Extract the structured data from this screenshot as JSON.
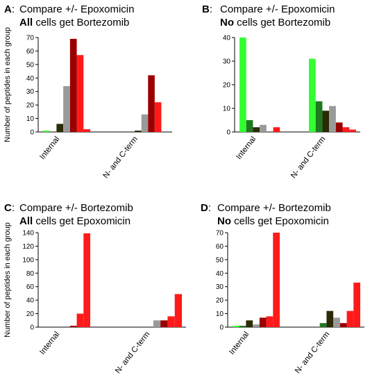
{
  "colors": {
    "bright_green": "#33ff33",
    "dark_green": "#1f7a1f",
    "dark_olive": "#2b2b05",
    "gray": "#9a9a9a",
    "dark_red": "#9a0000",
    "red": "#ff1a1a"
  },
  "chart_data": [
    {
      "type": "bar",
      "panel": "A",
      "letter": "A",
      "colon": ":",
      "title": "Compare +/- Epoxomicin",
      "subtitle_bold": "All",
      "subtitle_rest": " cells get Bortezomib",
      "ylabel": "Number of peptides in each group",
      "ylim": [
        0,
        70
      ],
      "yticks": [
        0,
        10,
        20,
        30,
        40,
        50,
        60,
        70
      ],
      "categories": [
        "Internal",
        "N- and C-term"
      ],
      "series": [
        {
          "color_key": "bright_green",
          "values": [
            1,
            0
          ]
        },
        {
          "color_key": "dark_green",
          "values": [
            0,
            0
          ]
        },
        {
          "color_key": "dark_olive",
          "values": [
            6,
            1
          ]
        },
        {
          "color_key": "gray",
          "values": [
            34,
            13
          ]
        },
        {
          "color_key": "dark_red",
          "values": [
            69,
            42
          ]
        },
        {
          "color_key": "red",
          "values": [
            57,
            22
          ]
        },
        {
          "color_key": "red",
          "values": [
            2,
            0
          ]
        }
      ]
    },
    {
      "type": "bar",
      "panel": "B",
      "letter": "B",
      "colon": ":",
      "title": "Compare +/- Epoxomicin",
      "subtitle_bold": "No",
      "subtitle_rest": " cells get Bortezomib",
      "ylabel": "",
      "ylim": [
        0,
        40
      ],
      "yticks": [
        0,
        10,
        20,
        30,
        40
      ],
      "categories": [
        "Internal",
        "N- and C-term"
      ],
      "series": [
        {
          "color_key": "bright_green",
          "values": [
            40,
            31
          ]
        },
        {
          "color_key": "dark_green",
          "values": [
            5,
            13
          ]
        },
        {
          "color_key": "dark_olive",
          "values": [
            2,
            9
          ]
        },
        {
          "color_key": "gray",
          "values": [
            3,
            11
          ]
        },
        {
          "color_key": "dark_red",
          "values": [
            0,
            4
          ]
        },
        {
          "color_key": "red",
          "values": [
            2,
            2
          ]
        },
        {
          "color_key": "red",
          "values": [
            0,
            1
          ]
        }
      ]
    },
    {
      "type": "bar",
      "panel": "C",
      "letter": "C",
      "colon": ":",
      "title": "Compare +/- Bortezomib",
      "subtitle_bold": "All",
      "subtitle_rest": " cells get Epoxomicin",
      "ylabel": "Number of peptides in each group",
      "ylim": [
        0,
        140
      ],
      "yticks": [
        0,
        20,
        40,
        60,
        80,
        100,
        120,
        140
      ],
      "categories": [
        "Internal",
        "N- and C-term"
      ],
      "series": [
        {
          "color_key": "bright_green",
          "values": [
            0,
            0
          ]
        },
        {
          "color_key": "dark_green",
          "values": [
            0,
            0
          ]
        },
        {
          "color_key": "dark_olive",
          "values": [
            0,
            0
          ]
        },
        {
          "color_key": "gray",
          "values": [
            0,
            10
          ]
        },
        {
          "color_key": "dark_red",
          "values": [
            2,
            10
          ]
        },
        {
          "color_key": "red",
          "values": [
            20,
            16
          ]
        },
        {
          "color_key": "red",
          "values": [
            139,
            49
          ]
        }
      ]
    },
    {
      "type": "bar",
      "panel": "D",
      "letter": "D",
      "colon": ":",
      "title": "Compare +/- Bortezomib",
      "subtitle_bold": "No",
      "subtitle_rest": " cells get Epoxomicin",
      "ylabel": "",
      "ylim": [
        0,
        70
      ],
      "yticks": [
        0,
        10,
        20,
        30,
        40,
        50,
        60,
        70
      ],
      "categories": [
        "Internal",
        "N- and C-term"
      ],
      "series": [
        {
          "color_key": "bright_green",
          "values": [
            1,
            0
          ]
        },
        {
          "color_key": "dark_green",
          "values": [
            1,
            3
          ]
        },
        {
          "color_key": "dark_olive",
          "values": [
            5,
            12
          ]
        },
        {
          "color_key": "gray",
          "values": [
            2,
            7
          ]
        },
        {
          "color_key": "dark_red",
          "values": [
            7,
            3
          ]
        },
        {
          "color_key": "red",
          "values": [
            8,
            12
          ]
        },
        {
          "color_key": "red",
          "values": [
            70,
            33
          ]
        }
      ]
    }
  ]
}
